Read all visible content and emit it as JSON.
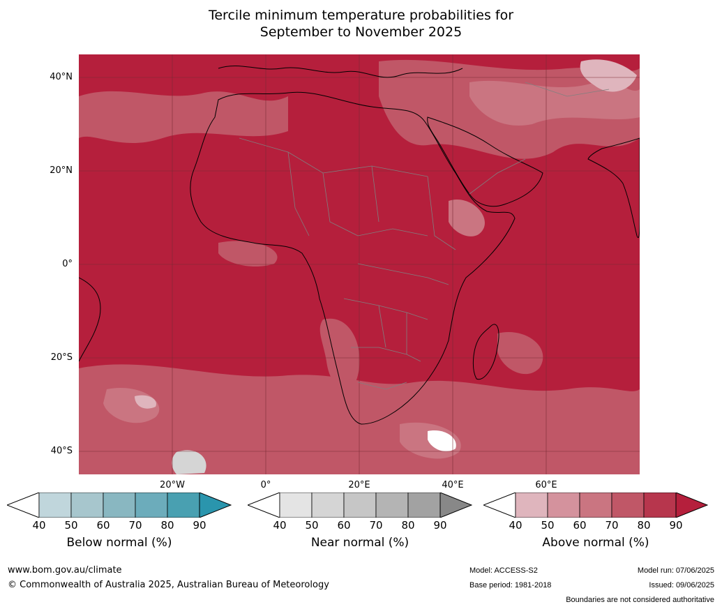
{
  "title_line1": "Tercile minimum temperature probabilities for",
  "title_line2": "September to November 2025",
  "map": {
    "lat_labels": [
      "40°N",
      "20°N",
      "0°",
      "20°S",
      "40°S"
    ],
    "lon_labels": [
      "20°W",
      "0°",
      "20°E",
      "40°E",
      "60°E"
    ],
    "dominant_color": "#b51f3c"
  },
  "colorbars": [
    {
      "label": "Below normal (%)",
      "ticks": [
        "40",
        "50",
        "60",
        "70",
        "80",
        "90"
      ],
      "colors": [
        "#ffffff",
        "#c0d6dc",
        "#a7c6cd",
        "#89b7c1",
        "#6cacbb",
        "#49a0b1",
        "#2a95ad"
      ]
    },
    {
      "label": "Near normal (%)",
      "ticks": [
        "40",
        "50",
        "60",
        "70",
        "80",
        "90"
      ],
      "colors": [
        "#ffffff",
        "#e4e4e4",
        "#d5d5d5",
        "#c6c6c6",
        "#b4b4b4",
        "#a2a2a2",
        "#888888"
      ]
    },
    {
      "label": "Above normal (%)",
      "ticks": [
        "40",
        "50",
        "60",
        "70",
        "80",
        "90"
      ],
      "colors": [
        "#ffffff",
        "#dfb5bd",
        "#d4929d",
        "#ca7581",
        "#c05767",
        "#b7364d",
        "#b51f3c"
      ]
    }
  ],
  "footer": {
    "site": "www.bom.gov.au/climate",
    "copyright": "© Commonwealth of Australia 2025, Australian Bureau of Meteorology",
    "model": "Model: ACCESS-S2",
    "base_period": "Base period: 1981-2018",
    "model_run": "Model run: 07/06/2025",
    "issued": "Issued: 09/06/2025",
    "disclaimer": "Boundaries are not considered authoritative"
  }
}
